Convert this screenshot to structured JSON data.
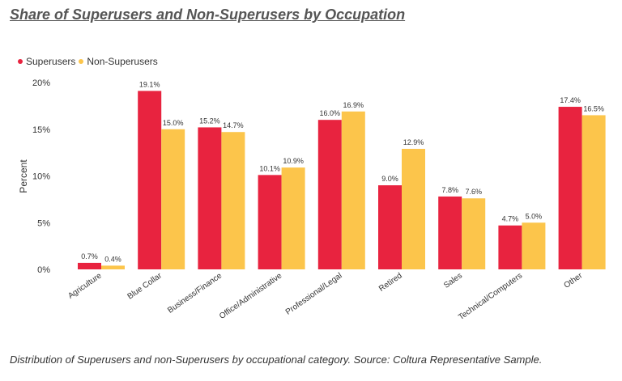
{
  "title": "Share of Superusers and Non-Superusers by Occupation",
  "caption": "Distribution of Superusers and non-Superusers by occupational category. Source: Coltura Representative Sample.",
  "colors": {
    "superusers": "#E8233F",
    "non_superusers": "#FCC54B",
    "text": "#333333"
  },
  "chart_data": {
    "type": "bar",
    "title": "Share of Superusers and Non-Superusers by Occupation",
    "xlabel": "",
    "ylabel": "Percent",
    "ylim": [
      0,
      20
    ],
    "yticks": [
      0,
      5,
      10,
      15,
      20
    ],
    "ytick_labels": [
      "0%",
      "5%",
      "10%",
      "15%",
      "20%"
    ],
    "grid": false,
    "legend": "top-left",
    "categories": [
      "Agriculture",
      "Blue Collar",
      "Business/Finance",
      "Office/Administrative",
      "Professional/Legal",
      "Retired",
      "Sales",
      "Technical/Computers",
      "Other"
    ],
    "series": [
      {
        "name": "Superusers",
        "values": [
          0.7,
          19.1,
          15.2,
          10.1,
          16.0,
          9.0,
          7.8,
          4.7,
          17.4
        ],
        "labels": [
          "0.7%",
          "19.1%",
          "15.2%",
          "10.1%",
          "16.0%",
          "9.0%",
          "7.8%",
          "4.7%",
          "17.4%"
        ]
      },
      {
        "name": "Non-Superusers",
        "values": [
          0.4,
          15.0,
          14.7,
          10.9,
          16.9,
          12.9,
          7.6,
          5.0,
          16.5
        ],
        "labels": [
          "0.4%",
          "15.0%",
          "14.7%",
          "10.9%",
          "16.9%",
          "12.9%",
          "7.6%",
          "5.0%",
          "16.5%"
        ]
      }
    ]
  }
}
